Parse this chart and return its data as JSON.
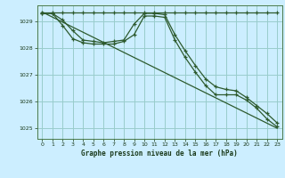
{
  "title": "Graphe pression niveau de la mer (hPa)",
  "background_color": "#cceeff",
  "plot_bg_color": "#cceeff",
  "grid_color": "#99cccc",
  "line_color": "#2d5a2d",
  "text_color": "#1a3a1a",
  "xlim": [
    -0.5,
    23.5
  ],
  "ylim": [
    1024.6,
    1029.6
  ],
  "yticks": [
    1025,
    1026,
    1027,
    1028,
    1029
  ],
  "xticks": [
    0,
    1,
    2,
    3,
    4,
    5,
    6,
    7,
    8,
    9,
    10,
    11,
    12,
    13,
    14,
    15,
    16,
    17,
    18,
    19,
    20,
    21,
    22,
    23
  ],
  "series1_x": [
    0,
    1,
    2,
    3,
    4,
    5,
    6,
    7,
    8,
    9,
    10,
    11,
    12,
    13,
    14,
    15,
    16,
    17,
    18,
    19,
    20,
    21,
    22,
    23
  ],
  "series1_y": [
    1029.3,
    1029.3,
    1029.05,
    1028.65,
    1028.3,
    1028.25,
    1028.2,
    1028.25,
    1028.3,
    1028.9,
    1029.3,
    1029.3,
    1029.25,
    1028.5,
    1027.9,
    1027.35,
    1026.85,
    1026.55,
    1026.45,
    1026.4,
    1026.15,
    1025.85,
    1025.55,
    1025.2
  ],
  "series2_x": [
    0,
    1,
    2,
    3,
    4,
    5,
    6,
    7,
    8,
    9,
    10,
    11,
    12,
    13,
    14,
    15,
    16,
    17,
    18,
    19,
    20,
    21,
    22,
    23
  ],
  "series2_y": [
    1029.3,
    1029.3,
    1028.85,
    1028.35,
    1028.2,
    1028.15,
    1028.15,
    1028.15,
    1028.25,
    1028.5,
    1029.2,
    1029.2,
    1029.15,
    1028.3,
    1027.65,
    1027.1,
    1026.6,
    1026.25,
    1026.25,
    1026.25,
    1026.05,
    1025.75,
    1025.35,
    1025.05
  ],
  "series3_x": [
    0,
    1,
    2,
    3,
    4,
    5,
    6,
    7,
    8,
    9,
    10,
    11,
    12,
    13,
    14,
    15,
    16,
    17,
    18,
    19,
    20,
    21,
    22,
    23
  ],
  "series3_y": [
    1029.35,
    1029.35,
    1029.35,
    1029.35,
    1029.35,
    1029.35,
    1029.35,
    1029.35,
    1029.35,
    1029.35,
    1029.35,
    1029.35,
    1029.35,
    1029.35,
    1029.35,
    1029.35,
    1029.35,
    1029.35,
    1029.35,
    1029.35,
    1029.35,
    1029.35,
    1029.35,
    1029.35
  ],
  "trend_x": [
    0,
    23
  ],
  "trend_y": [
    1029.35,
    1025.0
  ]
}
